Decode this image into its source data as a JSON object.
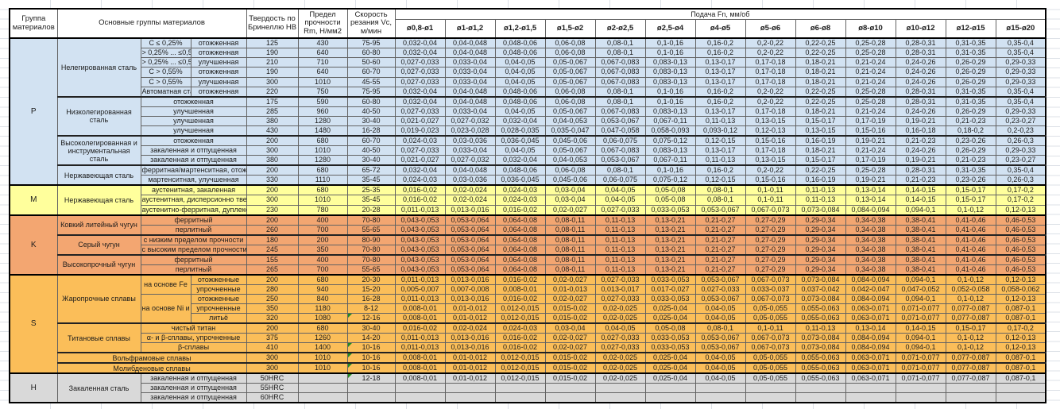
{
  "sheet": {
    "gridline_color": "#dde1e7",
    "border_color": "#000000",
    "error_indicator_color": "#218a21"
  },
  "table": {
    "headers": {
      "group": "Группа материалов",
      "main_groups": "Основные группы материалов",
      "hardness": "Твердость по Бринеллю HB",
      "strength": "Предел прочности Rm, Н/мм2",
      "speed": "Скорость резания Vc, м/мин",
      "feed_title": "Подача Fn, мм/об",
      "diameters": [
        "ø0,8-ø1",
        "ø1-ø1,2",
        "ø1,2-ø1,5",
        "ø1,5-ø2",
        "ø2-ø2,5",
        "ø2,5-ø4",
        "ø4-ø5",
        "ø5-ø6",
        "ø6-ø8",
        "ø8-ø10",
        "ø10-ø12",
        "ø12-ø15",
        "ø15-ø20"
      ]
    },
    "feed_sets": {
      "a": [
        "0,032-0,04",
        "0,04-0,048",
        "0,048-0,06",
        "0,06-0,08",
        "0,08-0,1",
        "0,1-0,16",
        "0,16-0,2",
        "0,2-0,22",
        "0,22-0,25",
        "0,25-0,28",
        "0,28-0,31",
        "0,31-0,35",
        "0,35-0,4"
      ],
      "b": [
        "0,027-0,033",
        "0,033-0,04",
        "0,04-0,05",
        "0,05-0,067",
        "0,067-0,083",
        "0,083-0,13",
        "0,13-0,17",
        "0,17-0,18",
        "0,18-0,21",
        "0,21-0,24",
        "0,24-0,26",
        "0,26-0,29",
        "0,29-0,33"
      ],
      "c": [
        "0,021-0,027",
        "0,027-0,032",
        "0,032-0,04",
        "0,04-0,053",
        "0,053-0,067",
        "0,067-0,11",
        "0,11-0,13",
        "0,13-0,15",
        "0,15-0,17",
        "0,17-0,19",
        "0,19-0,21",
        "0,21-0,23",
        "0,23-0,27"
      ],
      "d": [
        "0,019-0,023",
        "0,023-0,028",
        "0,028-0,035",
        "0,035-0,047",
        "0,047-0,058",
        "0,058-0,093",
        "0,093-0,12",
        "0,12-0,13",
        "0,13-0,15",
        "0,15-0,16",
        "0,16-0,18",
        "0,18-0,2",
        "0,2-0,23"
      ],
      "e": [
        "0,024-0,03",
        "0,03-0,036",
        "0,036-0,045",
        "0,045-0,06",
        "0,06-0,075",
        "0,075-0,12",
        "0,12-0,15",
        "0,15-0,16",
        "0,16-0,19",
        "0,19-0,21",
        "0,21-0,23",
        "0,23-0,26",
        "0,26-0,3"
      ],
      "f": [
        "0,016-0,02",
        "0,02-0,024",
        "0,024-0,03",
        "0,03-0,04",
        "0,04-0,05",
        "0,05-0,08",
        "0,08-0,1",
        "0,1-0,11",
        "0,11-0,13",
        "0,13-0,14",
        "0,14-0,15",
        "0,15-0,17",
        "0,17-0,2"
      ],
      "g": [
        "0,011-0,013",
        "0,013-0,016",
        "0,016-0,02",
        "0,02-0,027",
        "0,027-0,033",
        "0,033-0,053",
        "0,053-0,067",
        "0,067-0,073",
        "0,073-0,084",
        "0,084-0,094",
        "0,094-0,1",
        "0,1-0,12",
        "0,12-0,13"
      ],
      "h": [
        "0,043-0,053",
        "0,053-0,064",
        "0,064-0,08",
        "0,08-0,11",
        "0,11-0,13",
        "0,13-0,21",
        "0,21-0,27",
        "0,27-0,29",
        "0,29-0,34",
        "0,34-0,38",
        "0,38-0,41",
        "0,41-0,46",
        "0,46-0,53"
      ],
      "i": [
        "0,005-0,007",
        "0,007-0,008",
        "0,008-0,01",
        "0,01-0,013",
        "0,013-0,017",
        "0,017-0,027",
        "0,027-0,033",
        "0,033-0,037",
        "0,037-0,042",
        "0,042-0,047",
        "0,047-0,052",
        "0,052-0,058",
        "0,058-0,062"
      ],
      "j": [
        "0,008-0,01",
        "0,01-0,012",
        "0,012-0,015",
        "0,015-0,02",
        "0,02-0,025",
        "0,025-0,04",
        "0,04-0,05",
        "0,05-0,055",
        "0,055-0,063",
        "0,063-0,071",
        "0,071-0,077",
        "0,077-0,087",
        "0,087-0,1"
      ]
    },
    "groups": [
      {
        "code": "P",
        "color": "#d2e2f2",
        "families": [
          {
            "name": "Нелегированная сталь",
            "rows": [
              {
                "sub": "C ≤ 0,25%",
                "state": "отожженная",
                "hb": "125",
                "rm": "430",
                "vc": "75-95",
                "feeds": "a"
              },
              {
                "sub": "> 0,25% ... ≤0,55%",
                "state": "отожженная",
                "hb": "190",
                "rm": "640",
                "vc": "60-80",
                "feeds": "a"
              },
              {
                "sub": "> 0,25% ... ≤0,55%",
                "state": "улучшенная",
                "hb": "210",
                "rm": "710",
                "vc": "50-60",
                "feeds": "b"
              },
              {
                "sub": "C > 0,55%",
                "state": "отожженная",
                "hb": "190",
                "rm": "640",
                "vc": "60-70",
                "feeds": "b"
              },
              {
                "sub": "C > 0,55%",
                "state": "улучшенная",
                "hb": "300",
                "rm": "1010",
                "vc": "45-55",
                "feeds": "b"
              },
              {
                "sub": "Автоматная сталь",
                "state": "отожженная",
                "hb": "220",
                "rm": "750",
                "vc": "75-95",
                "feeds": "a"
              }
            ]
          },
          {
            "name": "Низколегированная сталь",
            "rows": [
              {
                "label": "отожженная",
                "hb": "175",
                "rm": "590",
                "vc": "60-80",
                "feeds": "a"
              },
              {
                "label": "улучшенная",
                "hb": "285",
                "rm": "960",
                "vc": "40-50",
                "feeds": "b"
              },
              {
                "label": "улучшенная",
                "hb": "380",
                "rm": "1280",
                "vc": "30-40",
                "feeds": "c"
              },
              {
                "label": "улучшенная",
                "hb": "430",
                "rm": "1480",
                "vc": "16-28",
                "feeds": "d"
              }
            ]
          },
          {
            "name": "Высоколегированная и инструментальная сталь",
            "rows": [
              {
                "label": "отожженная",
                "hb": "200",
                "rm": "680",
                "vc": "60-70",
                "feeds": "e"
              },
              {
                "label": "закаленная и отпущенная",
                "hb": "300",
                "rm": "1010",
                "vc": "40-50",
                "feeds": "b"
              },
              {
                "label": "закаленная и отпущенная",
                "hb": "380",
                "rm": "1280",
                "vc": "30-40",
                "feeds": "c"
              }
            ]
          },
          {
            "name": "Нержавеющая сталь",
            "rows": [
              {
                "label": "ферритная/мартенситная, отожженная",
                "hb": "200",
                "rm": "680",
                "vc": "65-72",
                "feeds": "a"
              },
              {
                "label": "мартенситная, улучшенная",
                "hb": "330",
                "rm": "1110",
                "vc": "35-45",
                "feeds": "e"
              }
            ]
          }
        ]
      },
      {
        "code": "M",
        "color": "#ffff9c",
        "families": [
          {
            "name": "Нержавеющая сталь",
            "rows": [
              {
                "label": "аустенитная, закаленная",
                "hb": "200",
                "rm": "680",
                "vc": "25-35",
                "feeds": "f"
              },
              {
                "label": "аустенитная, дисперсионно твердеющая",
                "hb": "300",
                "rm": "1010",
                "vc": "35-45",
                "feeds": "f"
              },
              {
                "label": "аустенитно-ферритная, дуплексная",
                "hb": "230",
                "rm": "780",
                "vc": "20-28",
                "feeds": "g"
              }
            ]
          }
        ]
      },
      {
        "code": "K",
        "color": "#f3a671",
        "families": [
          {
            "name": "Ковкий литейный чугун",
            "rows": [
              {
                "label": "ферритный",
                "hb": "200",
                "rm": "400",
                "vc": "70-80",
                "feeds": "h"
              },
              {
                "label": "перлитный",
                "hb": "260",
                "rm": "700",
                "vc": "55-65",
                "feeds": "h"
              }
            ]
          },
          {
            "name": "Серый чугун",
            "rows": [
              {
                "label": "с низким пределом прочности",
                "hb": "180",
                "rm": "200",
                "vc": "80-90",
                "feeds": "h"
              },
              {
                "label": "с высоким пределом прочности",
                "hb": "245",
                "rm": "350",
                "vc": "70-80",
                "feeds": "h"
              }
            ]
          },
          {
            "name": "Высокопрочный чугун",
            "rows": [
              {
                "label": "ферритный",
                "hb": "155",
                "rm": "400",
                "vc": "70-80",
                "feeds": "h"
              },
              {
                "label": "перлитный",
                "hb": "265",
                "rm": "700",
                "vc": "55-65",
                "feeds": "h"
              }
            ]
          }
        ]
      },
      {
        "code": "S",
        "color": "#fbbe59",
        "families": [
          {
            "name": "Жаропрочные сплавы",
            "rows": [
              {
                "sub": {
                  "text": "на основе Fe",
                  "rowspan": 2
                },
                "state": "отожженные",
                "hb": "200",
                "rm": "680",
                "vc": "20-30",
                "feeds": "g"
              },
              {
                "state": "упрочненные",
                "hb": "280",
                "rm": "940",
                "vc": "15-20",
                "feeds": "i"
              },
              {
                "sub": {
                  "text": "на основе Ni и Co",
                  "rowspan": 3
                },
                "state": "отожженные",
                "hb": "250",
                "rm": "840",
                "vc": "16-28",
                "feeds": "g"
              },
              {
                "state": "упрочненные",
                "hb": "350",
                "rm": "1180",
                "vc": "8-12",
                "feeds": "j"
              },
              {
                "state": "литьё",
                "hb": "320",
                "rm": "1080",
                "vc": "12-16",
                "vc_flag": true,
                "feeds": "j"
              }
            ]
          },
          {
            "name": "Титановые сплавы",
            "rows": [
              {
                "label": "чистый титан",
                "hb": "200",
                "rm": "680",
                "vc": "30-40",
                "feeds": "f"
              },
              {
                "label": "α- и β-сплавы, упрочненные",
                "hb": "375",
                "rm": "1260",
                "vc": "14-20",
                "feeds": "g"
              },
              {
                "label": "β-сплавы",
                "hb": "410",
                "rm": "1400",
                "vc": "10-16",
                "vc_flag": true,
                "feeds": "g"
              }
            ]
          },
          {
            "name": "Вольфрамовые сплавы",
            "wide": true,
            "rows": [
              {
                "hb": "300",
                "rm": "1010",
                "vc": "10-16",
                "vc_flag": true,
                "feeds": "j"
              }
            ]
          },
          {
            "name": "Молибденовые сплавы",
            "wide": true,
            "rows": [
              {
                "hb": "300",
                "rm": "1010",
                "vc": "10-16",
                "vc_flag": true,
                "feeds": "j"
              }
            ]
          }
        ]
      },
      {
        "code": "H",
        "color": "#d9d9d9",
        "families": [
          {
            "name": "Закаленная сталь",
            "rows": [
              {
                "label": "закаленная и отпущенная",
                "hb": "50HRC",
                "rm": "",
                "vc": "12-18",
                "vc_flag": true,
                "feeds": "j"
              },
              {
                "label": "закаленная и отпущенная",
                "hb": "55HRC",
                "rm": "",
                "vc": "",
                "feeds": null
              },
              {
                "label": "закаленная и отпущенная",
                "hb": "60HRC",
                "rm": "",
                "vc": "",
                "feeds": null
              }
            ]
          }
        ]
      }
    ]
  }
}
